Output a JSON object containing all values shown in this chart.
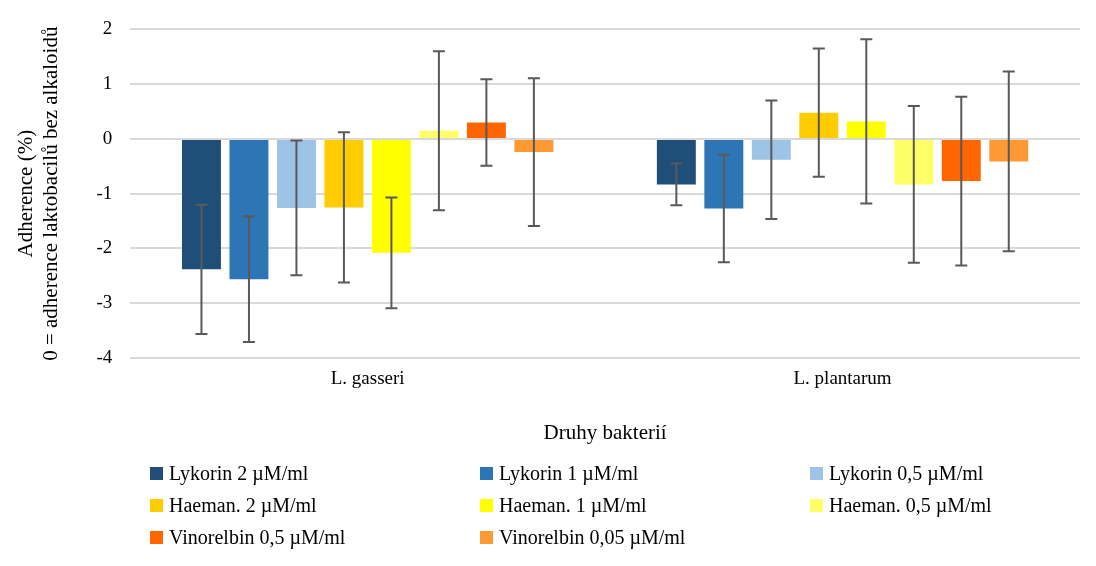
{
  "chart_data": {
    "type": "bar",
    "xlabel": "Druhy bakterií",
    "ylabel": "Adherence (%)\n0 = adherence laktobacilů bez alkaloidů",
    "categories": [
      "L. gasseri",
      "L. plantarum"
    ],
    "ylim": [
      -4,
      2
    ],
    "yticks": [
      -4,
      -3,
      -2,
      -1,
      0,
      1,
      2
    ],
    "grid": "y",
    "legend": "bottom",
    "series": [
      {
        "name": "Lykorin 2 µM/ml",
        "color": "#1f4e79",
        "values": [
          -2.38,
          -0.83
        ],
        "errors": [
          1.18,
          0.38
        ]
      },
      {
        "name": "Lykorin 1 µM/ml",
        "color": "#2e75b6",
        "values": [
          -2.56,
          -1.27
        ],
        "errors": [
          1.15,
          0.98
        ]
      },
      {
        "name": "Lykorin 0,5 µM/ml",
        "color": "#9dc3e6",
        "values": [
          -1.26,
          -0.38
        ],
        "errors": [
          1.23,
          1.08
        ]
      },
      {
        "name": "Haeman. 2 µM/ml",
        "color": "#ffcc00",
        "values": [
          -1.25,
          0.48
        ],
        "errors": [
          1.37,
          1.17
        ]
      },
      {
        "name": "Haeman. 1 µM/ml",
        "color": "#ffff00",
        "values": [
          -2.08,
          0.32
        ],
        "errors": [
          1.01,
          1.5
        ]
      },
      {
        "name": "Haeman. 0,5 µM/ml",
        "color": "#ffff66",
        "values": [
          0.15,
          -0.83
        ],
        "errors": [
          1.45,
          1.43
        ]
      },
      {
        "name": "Vinorelbin 0,5 µM/ml",
        "color": "#ff6600",
        "values": [
          0.3,
          -0.77
        ],
        "errors": [
          0.79,
          1.54
        ]
      },
      {
        "name": "Vinorelbin 0,05 µM/ml",
        "color": "#ff9933",
        "values": [
          -0.24,
          -0.41
        ],
        "errors": [
          1.35,
          1.64
        ]
      }
    ]
  }
}
